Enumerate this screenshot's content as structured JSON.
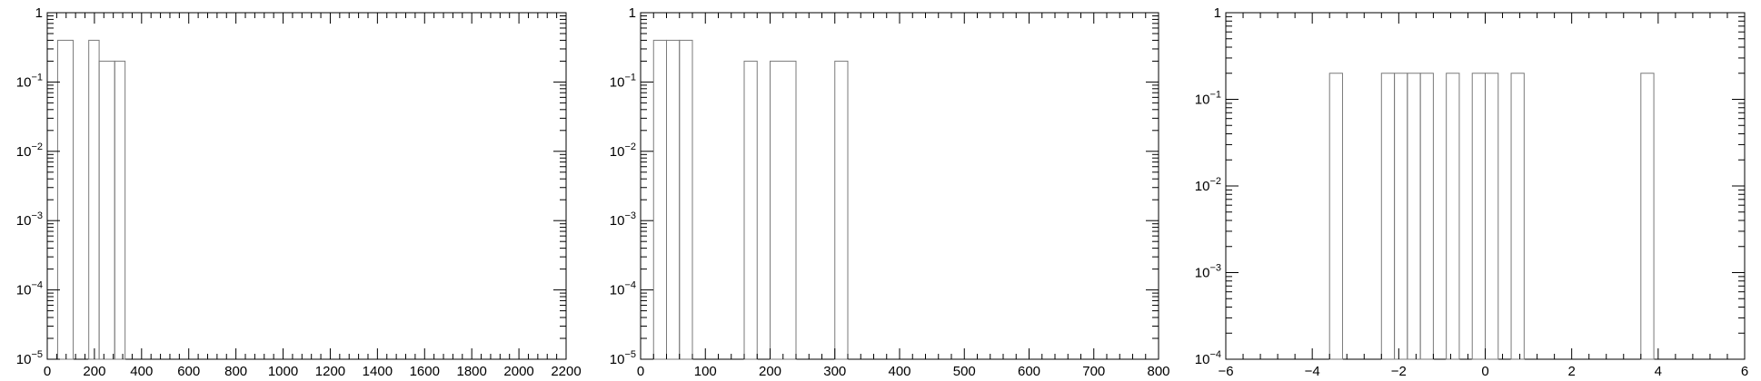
{
  "chart_data": [
    {
      "type": "bar",
      "style": "histogram-outline",
      "bar_color": "#7a7a7a",
      "log_y": true,
      "xlim": [
        0,
        2200
      ],
      "ylim": [
        1e-05,
        1
      ],
      "x_ticks": [
        0,
        200,
        400,
        600,
        800,
        1000,
        1200,
        1400,
        1600,
        1800,
        2000,
        2200
      ],
      "x_tick_labels": [
        "0",
        "200",
        "400",
        "600",
        "800",
        "1000",
        "1200",
        "1400",
        "1600",
        "1800",
        "2000",
        "2200"
      ],
      "y_tick_labels": [
        {
          "base": "10",
          "exp": "−5"
        },
        {
          "base": "10",
          "exp": "−4"
        },
        {
          "base": "10",
          "exp": "−3"
        },
        {
          "base": "10",
          "exp": "−2"
        },
        {
          "base": "10",
          "exp": "−1"
        },
        {
          "base": "1",
          "exp": ""
        }
      ],
      "bins": [
        {
          "x0": 44,
          "x1": 110,
          "value": 0.4
        },
        {
          "x0": 176,
          "x1": 220,
          "value": 0.4
        },
        {
          "x0": 220,
          "x1": 286,
          "value": 0.2
        },
        {
          "x0": 286,
          "x1": 330,
          "value": 0.2
        }
      ]
    },
    {
      "type": "bar",
      "style": "histogram-outline",
      "bar_color": "#7a7a7a",
      "log_y": true,
      "xlim": [
        0,
        800
      ],
      "ylim": [
        1e-05,
        1
      ],
      "x_ticks": [
        0,
        100,
        200,
        300,
        400,
        500,
        600,
        700,
        800
      ],
      "x_tick_labels": [
        "0",
        "100",
        "200",
        "300",
        "400",
        "500",
        "600",
        "700",
        "800"
      ],
      "y_tick_labels": [
        {
          "base": "10",
          "exp": "−5"
        },
        {
          "base": "10",
          "exp": "−4"
        },
        {
          "base": "10",
          "exp": "−3"
        },
        {
          "base": "10",
          "exp": "−2"
        },
        {
          "base": "10",
          "exp": "−1"
        },
        {
          "base": "1",
          "exp": ""
        }
      ],
      "bins": [
        {
          "x0": 20,
          "x1": 40,
          "value": 0.4
        },
        {
          "x0": 40,
          "x1": 60,
          "value": 0.4
        },
        {
          "x0": 60,
          "x1": 80,
          "value": 0.4
        },
        {
          "x0": 160,
          "x1": 180,
          "value": 0.2
        },
        {
          "x0": 200,
          "x1": 240,
          "value": 0.2
        },
        {
          "x0": 300,
          "x1": 320,
          "value": 0.2
        }
      ]
    },
    {
      "type": "bar",
      "style": "histogram-outline",
      "bar_color": "#7a7a7a",
      "log_y": true,
      "xlim": [
        -6,
        6
      ],
      "ylim": [
        0.0001,
        1
      ],
      "x_ticks": [
        -6,
        -4,
        -2,
        0,
        2,
        4,
        6
      ],
      "x_tick_labels": [
        "−6",
        "−4",
        "−2",
        "0",
        "2",
        "4",
        "6"
      ],
      "y_tick_labels": [
        {
          "base": "10",
          "exp": "−4"
        },
        {
          "base": "10",
          "exp": "−3"
        },
        {
          "base": "10",
          "exp": "−2"
        },
        {
          "base": "10",
          "exp": "−1"
        },
        {
          "base": "1",
          "exp": ""
        }
      ],
      "bins": [
        {
          "x0": -3.6,
          "x1": -3.3,
          "value": 0.2
        },
        {
          "x0": -2.4,
          "x1": -2.1,
          "value": 0.2
        },
        {
          "x0": -2.1,
          "x1": -1.8,
          "value": 0.2
        },
        {
          "x0": -1.8,
          "x1": -1.5,
          "value": 0.2
        },
        {
          "x0": -1.5,
          "x1": -1.2,
          "value": 0.2
        },
        {
          "x0": -0.9,
          "x1": -0.6,
          "value": 0.2
        },
        {
          "x0": -0.3,
          "x1": 0.0,
          "value": 0.2
        },
        {
          "x0": 0.0,
          "x1": 0.3,
          "value": 0.2
        },
        {
          "x0": 0.6,
          "x1": 0.9,
          "value": 0.2
        },
        {
          "x0": 3.6,
          "x1": 3.9,
          "value": 0.2
        }
      ]
    }
  ]
}
